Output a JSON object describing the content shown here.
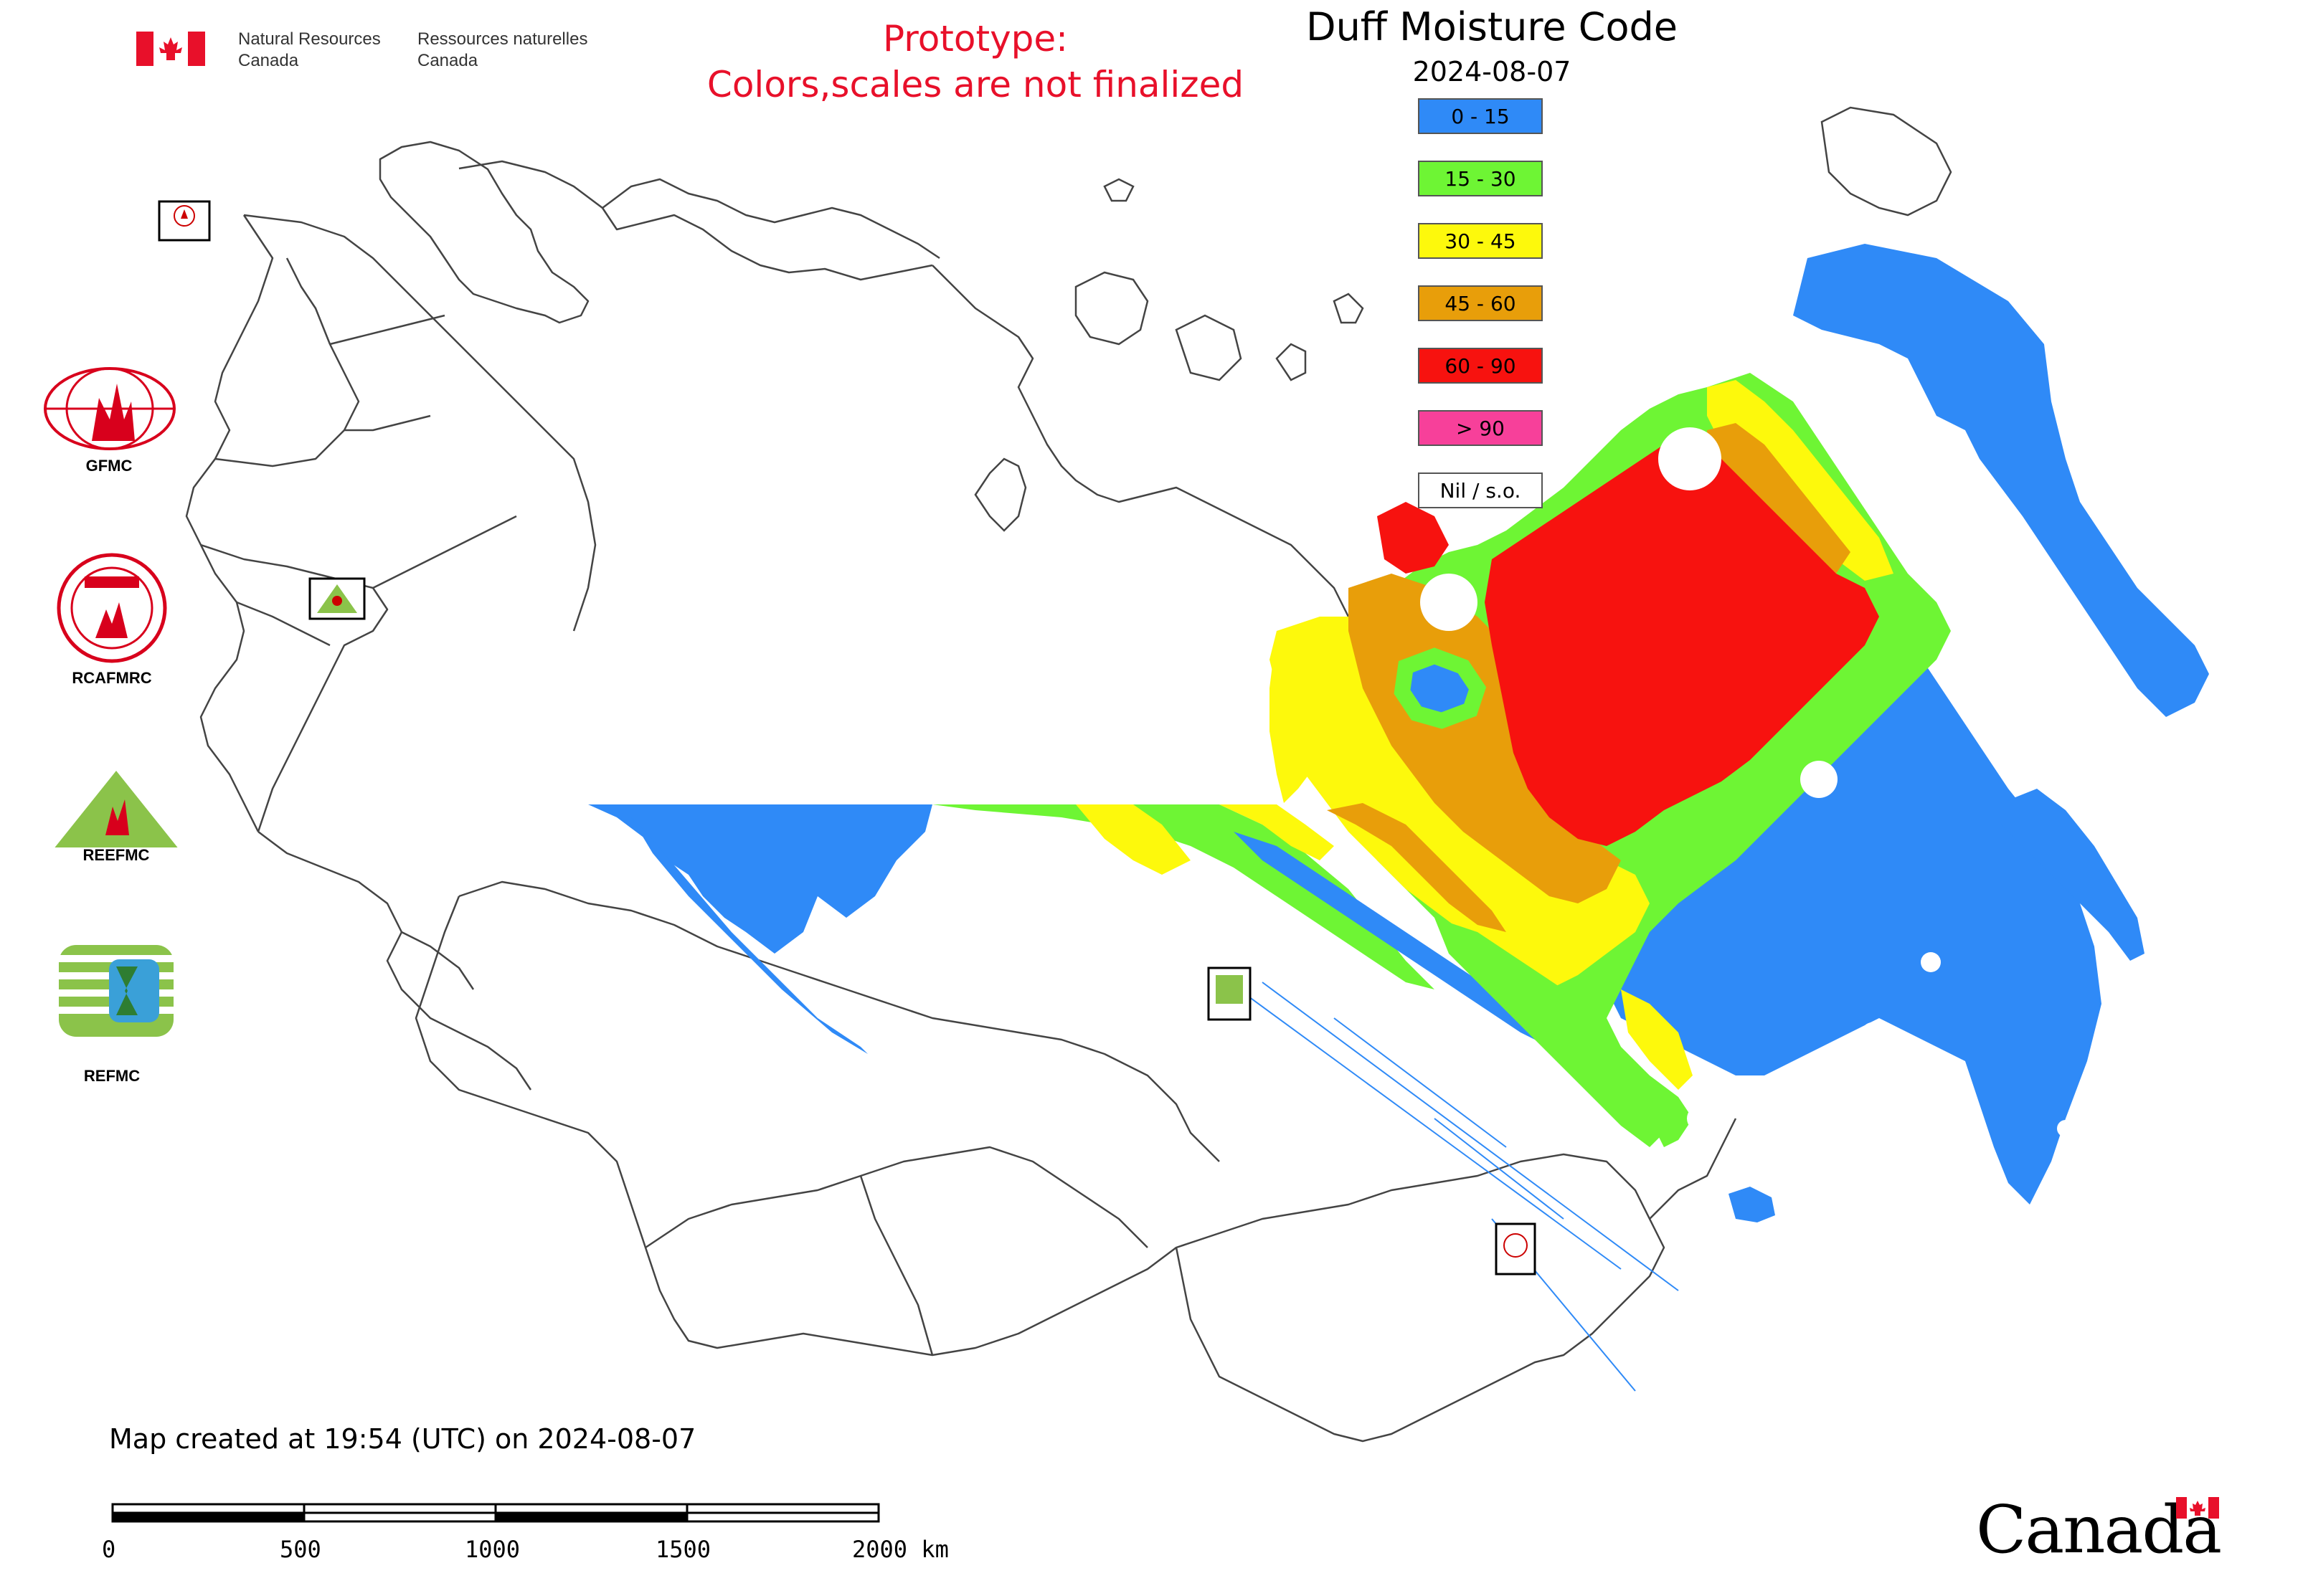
{
  "header": {
    "dept_en_line1": "Natural Resources",
    "dept_en_line2": "Canada",
    "dept_fr_line1": "Ressources naturelles",
    "dept_fr_line2": "Canada"
  },
  "notice": {
    "line1": "Prototype:",
    "line2": "Colors,scales are not finalized"
  },
  "map_title": "Duff Moisture Code",
  "map_date": "2024-08-07",
  "legend": [
    {
      "label": "0 - 15",
      "color": "#2f8af7"
    },
    {
      "label": "15 - 30",
      "color": "#6ef534"
    },
    {
      "label": "30 - 45",
      "color": "#fdf90c"
    },
    {
      "label": "45 - 60",
      "color": "#e89e0a"
    },
    {
      "label": "60 - 90",
      "color": "#f7120f"
    },
    {
      "label": "> 90",
      "color": "#f7409a"
    },
    {
      "label": "Nil / s.o.",
      "color": "#ffffff"
    }
  ],
  "logos": [
    {
      "name": "GFMC",
      "label": "GFMC"
    },
    {
      "name": "RCAFMRC",
      "label": "RCAFMRC"
    },
    {
      "name": "REEFMC",
      "label": "REEFMC"
    },
    {
      "name": "REFMC",
      "label": "REFMC"
    }
  ],
  "footer": {
    "created_text": "Map created at 19:54 (UTC) on 2024-08-07",
    "canada_wordmark": "Canada"
  },
  "scale_bar": {
    "ticks": [
      "0",
      "500",
      "1000",
      "1500",
      "2000 km"
    ]
  },
  "colors": {
    "notice_red": "#e8102a",
    "boundary": "#555555",
    "flag_red": "#e8102a"
  },
  "icons": [
    "canada-flag-icon",
    "gfmc-logo",
    "rcafmrc-logo",
    "reefmc-logo",
    "refmc-logo",
    "fire-center-marker-icon"
  ]
}
